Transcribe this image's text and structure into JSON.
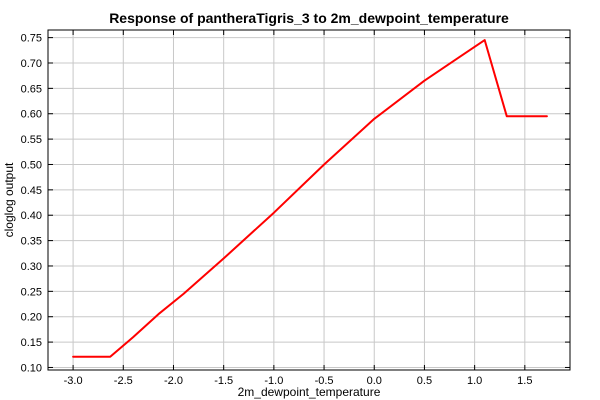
{
  "chart_data": {
    "type": "line",
    "title": "Response of pantheraTigris_3 to 2m_dewpoint_temperature",
    "xlabel": "2m_dewpoint_temperature",
    "ylabel": "cloglog output",
    "xlim": [
      -3.25,
      1.95
    ],
    "ylim": [
      0.095,
      0.765
    ],
    "xticks": [
      -3.0,
      -2.5,
      -2.0,
      -1.5,
      -1.0,
      -0.5,
      0.0,
      0.5,
      1.0,
      1.5
    ],
    "xtick_labels": [
      "-3.0",
      "-2.5",
      "-2.0",
      "-1.5",
      "-1.0",
      "-0.5",
      "0.0",
      "0.5",
      "1.0",
      "1.5"
    ],
    "yticks": [
      0.1,
      0.15,
      0.2,
      0.25,
      0.3,
      0.35,
      0.4,
      0.45,
      0.5,
      0.55,
      0.6,
      0.65,
      0.7,
      0.75
    ],
    "ytick_labels": [
      "0.10",
      "0.15",
      "0.20",
      "0.25",
      "0.30",
      "0.35",
      "0.40",
      "0.45",
      "0.50",
      "0.55",
      "0.60",
      "0.65",
      "0.70",
      "0.75"
    ],
    "grid": true,
    "series": [
      {
        "color": "#ff0000",
        "x": [
          -3.0,
          -2.63,
          -2.4,
          -2.15,
          -1.9,
          -1.5,
          -1.0,
          -0.5,
          0.0,
          0.5,
          0.85,
          1.1,
          1.32,
          1.72
        ],
        "y": [
          0.121,
          0.121,
          0.16,
          0.205,
          0.245,
          0.315,
          0.405,
          0.5,
          0.59,
          0.665,
          0.712,
          0.745,
          0.595,
          0.595
        ]
      }
    ]
  }
}
